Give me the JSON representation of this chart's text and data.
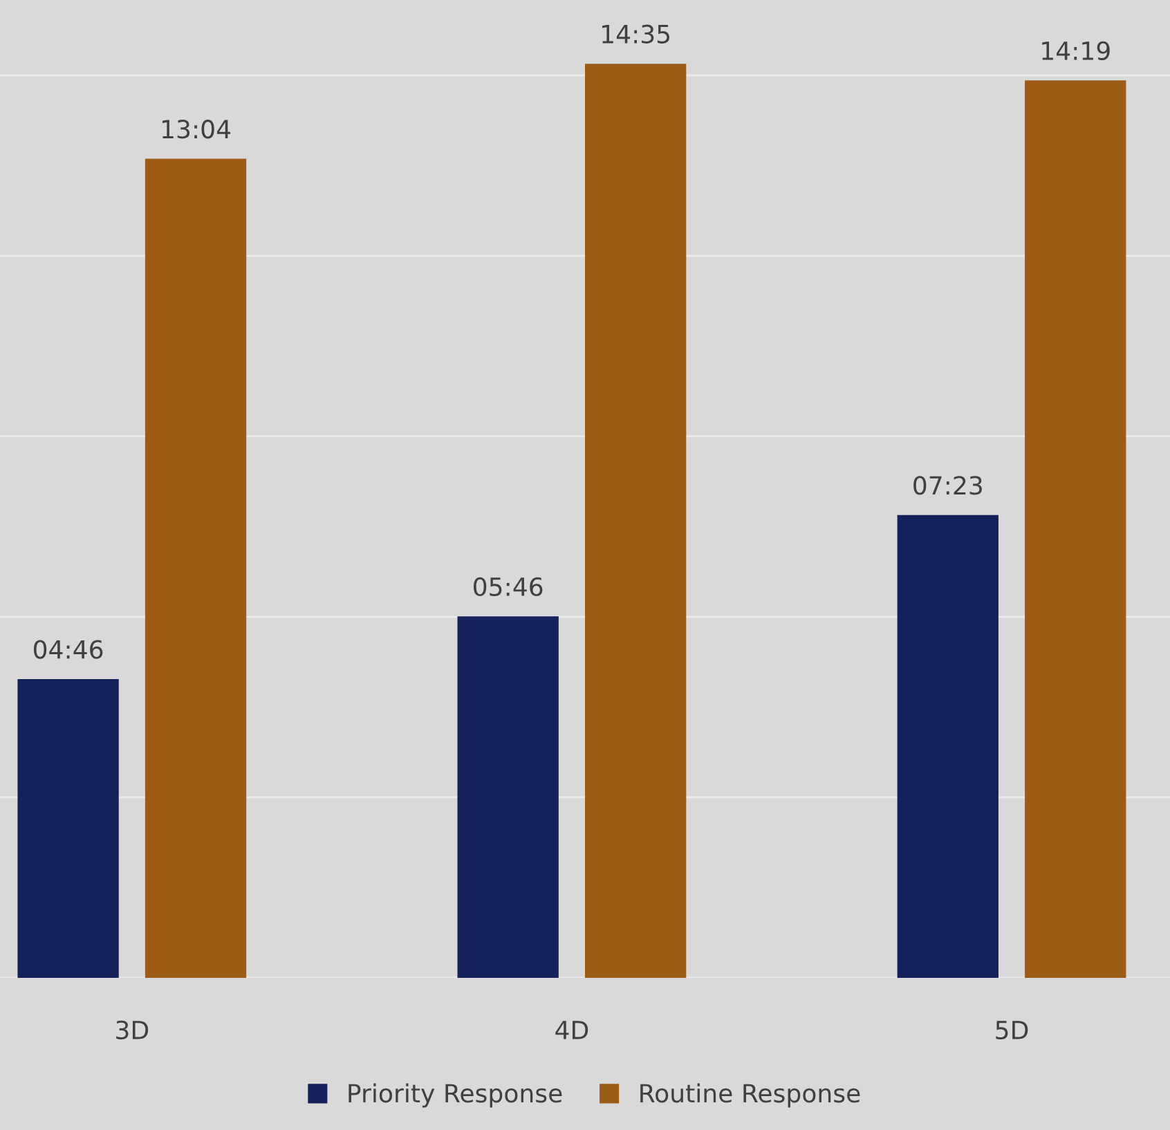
{
  "chart_data": {
    "type": "bar",
    "categories": [
      "3D",
      "4D",
      "5D"
    ],
    "series": [
      {
        "name": "Priority Response",
        "color": "#14215a",
        "values": [
          4.7667,
          5.7667,
          7.3833
        ],
        "value_labels": [
          "04:46",
          "05:46",
          "07:23"
        ]
      },
      {
        "name": "Routine Response",
        "color": "#9c5c16",
        "values": [
          13.0667,
          14.5833,
          14.3167
        ],
        "value_labels": [
          "13:04",
          "14:35",
          "14:19"
        ]
      }
    ],
    "ylim": [
      0,
      15.6
    ],
    "yticks": [
      {
        "value": 0,
        "label": null
      },
      {
        "value": 2.88,
        "label": null
      },
      {
        "value": 5.76,
        "label": null
      },
      {
        "value": 8.64,
        "label": null
      },
      {
        "value": 11.52,
        "label": null
      },
      {
        "value": 14.4,
        "label": null
      }
    ],
    "tick_labels": "x",
    "grid": "y",
    "legend": "bottom"
  }
}
